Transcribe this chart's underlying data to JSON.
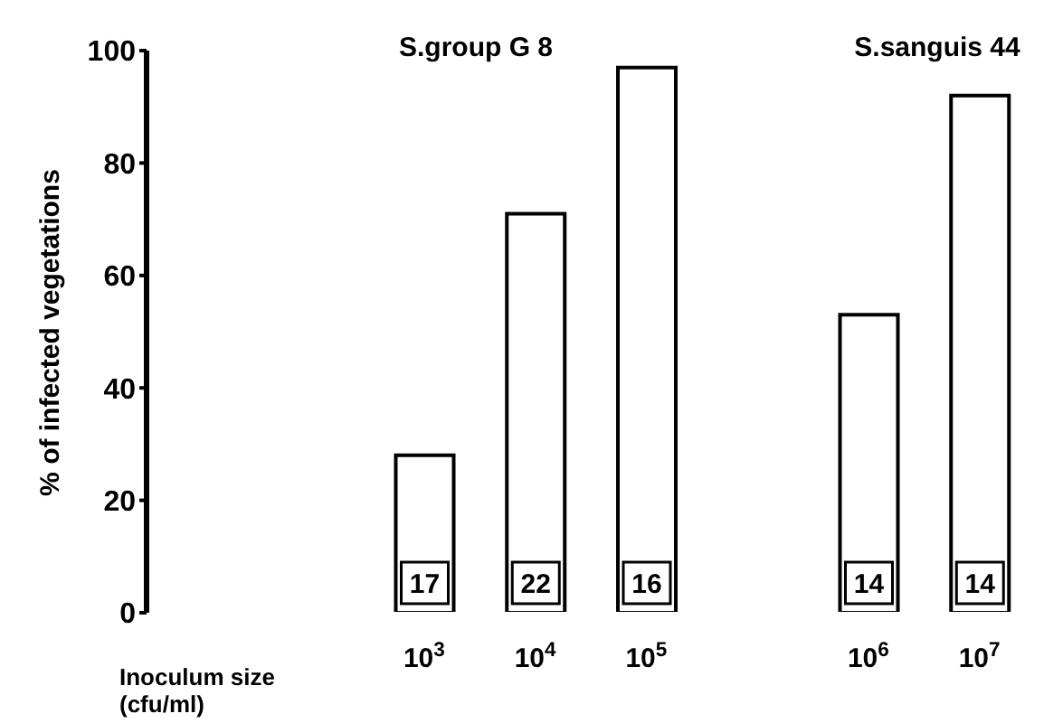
{
  "chart_data": {
    "type": "bar",
    "ylabel": "% of infected vegetations",
    "xlabel": "Inoculum size (cfu/ml)",
    "categories": [
      null,
      null,
      "10$^{3}$",
      "10$^{4}$",
      "10$^{5}$",
      null,
      "10$^{6}$",
      "10$^{7}$"
    ],
    "values": [
      null,
      null,
      28,
      71,
      97,
      null,
      53,
      92
    ],
    "color": "#ffffff",
    "ylim": [
      0,
      100
    ],
    "yticks": [
      0,
      20,
      40,
      60,
      80,
      100
    ],
    "grid": false,
    "legend": false,
    "annotations": [
      "S.group G 8",
      "S.sanguis 44",
      "17",
      "22",
      "16",
      "14",
      "14"
    ]
  }
}
